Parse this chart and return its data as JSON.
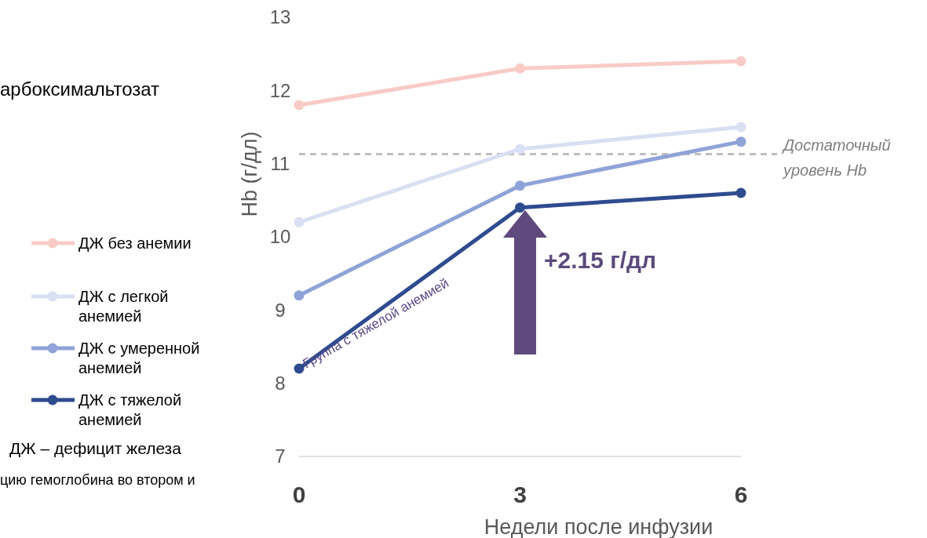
{
  "chart_data": {
    "type": "line",
    "xlabel": "Недели после инфузии",
    "ylabel": "Hb (г/дл)",
    "x": [
      0,
      3,
      6
    ],
    "xlim": [
      0,
      6
    ],
    "xticks": [
      0,
      3,
      6
    ],
    "ylim": [
      7,
      13
    ],
    "yticks": [
      7,
      8,
      9,
      10,
      11,
      12,
      13
    ],
    "series": [
      {
        "name": "ДЖ без анемии",
        "color": "#f8cbc6",
        "values": [
          11.8,
          12.3,
          12.4
        ]
      },
      {
        "name": "ДЖ с легкой анемией",
        "color": "#d9e0f3",
        "values": [
          10.2,
          11.2,
          11.5
        ]
      },
      {
        "name": "ДЖ с умеренной анемией",
        "color": "#8fa3d8",
        "values": [
          9.2,
          10.7,
          11.3
        ]
      },
      {
        "name": "ДЖ с тяжелой анемией",
        "color": "#2f4b8f",
        "values": [
          8.2,
          10.4,
          10.6
        ]
      }
    ],
    "marker": "circle",
    "line_style": "solid",
    "legend": "left",
    "ref_lines": [
      {
        "axis": "y",
        "value": 11.13,
        "label": "Достаточный уровень Hb",
        "color": "#bfbfbf",
        "line_style": "dashed"
      }
    ],
    "annotations": [
      "арбоксимальтозат",
      "ДЖ – дефицит железа",
      "цию гемоглобина во втором и",
      "Группа с тяжелой анемией",
      "+2.15 г/дл"
    ]
  }
}
